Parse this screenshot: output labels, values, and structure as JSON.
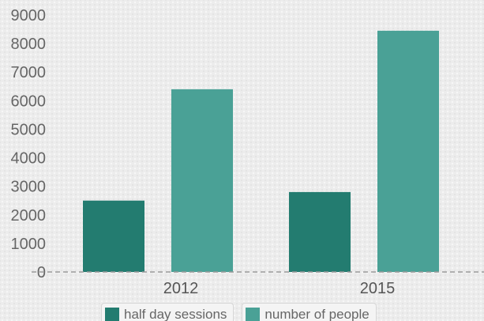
{
  "chart_data": {
    "type": "bar",
    "categories": [
      "2012",
      "2015"
    ],
    "series": [
      {
        "name": "half day sessions",
        "values": [
          2500,
          2800
        ],
        "color": "#237c70"
      },
      {
        "name": "number of people",
        "values": [
          6400,
          8450
        ],
        "color": "#4aa196"
      }
    ],
    "ylim": [
      0,
      9000
    ],
    "yticks": [
      0,
      1000,
      2000,
      3000,
      4000,
      5000,
      6000,
      7000,
      8000,
      9000
    ],
    "grid": false,
    "legend_position": "bottom"
  }
}
